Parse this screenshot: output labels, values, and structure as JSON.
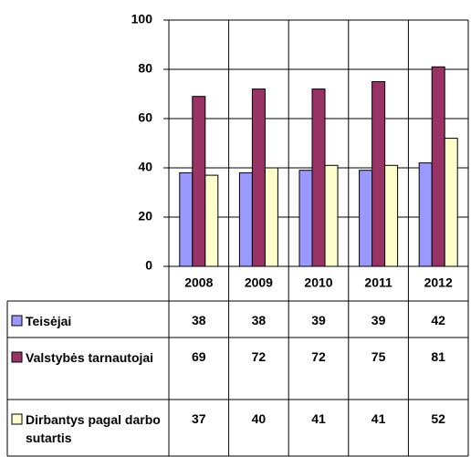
{
  "chart_data": {
    "type": "bar",
    "categories": [
      "2008",
      "2009",
      "2010",
      "2011",
      "2012"
    ],
    "series": [
      {
        "name": "Teisėjai",
        "color": "#9999ff",
        "values": [
          38,
          38,
          39,
          39,
          42
        ]
      },
      {
        "name": "Valstybės tarnautojai",
        "color": "#993366",
        "values": [
          69,
          72,
          72,
          75,
          81
        ]
      },
      {
        "name": "Dirbantys pagal darbo sutartis",
        "color": "#ffffcc",
        "values": [
          37,
          40,
          41,
          41,
          52
        ]
      }
    ],
    "ylim": [
      0,
      100
    ],
    "yticks": [
      0,
      20,
      40,
      60,
      80,
      100
    ],
    "grid": true,
    "legend": "table"
  }
}
